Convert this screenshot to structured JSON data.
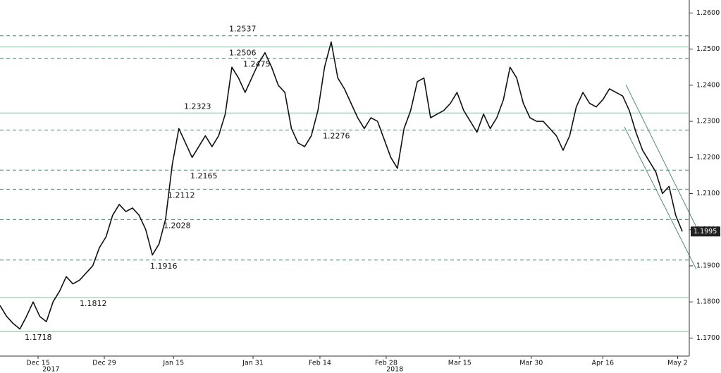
{
  "chart_data": {
    "type": "line",
    "x": [
      0,
      1,
      2,
      3,
      4,
      5,
      6,
      7,
      8,
      9,
      10,
      11,
      12,
      13,
      14,
      15,
      16,
      17,
      18,
      19,
      20,
      21,
      22,
      23,
      24,
      25,
      26,
      27,
      28,
      29,
      30,
      31,
      32,
      33,
      34,
      35,
      36,
      37,
      38,
      39,
      40,
      41,
      42,
      43,
      44,
      45,
      46,
      47,
      48,
      49,
      50,
      51,
      52,
      53,
      54,
      55,
      56,
      57,
      58,
      59,
      60,
      61,
      62,
      63,
      64,
      65,
      66,
      67,
      68,
      69,
      70,
      71,
      72,
      73,
      74,
      75,
      76,
      77,
      78,
      79,
      80,
      81,
      82,
      83,
      84,
      85,
      86,
      87,
      88,
      89,
      90,
      91,
      92,
      93,
      94,
      95,
      96,
      97,
      98,
      99,
      100,
      101,
      102,
      103
    ],
    "series": [
      {
        "color": "#111111",
        "values": [
          1.179,
          1.176,
          1.174,
          1.1725,
          1.176,
          1.18,
          1.176,
          1.1745,
          1.18,
          1.183,
          1.187,
          1.185,
          1.186,
          1.188,
          1.19,
          1.195,
          1.198,
          1.204,
          1.207,
          1.205,
          1.206,
          1.204,
          1.2,
          1.193,
          1.196,
          1.203,
          1.218,
          1.228,
          1.224,
          1.22,
          1.223,
          1.226,
          1.223,
          1.226,
          1.232,
          1.245,
          1.242,
          1.238,
          1.242,
          1.246,
          1.249,
          1.245,
          1.24,
          1.238,
          1.228,
          1.224,
          1.223,
          1.226,
          1.233,
          1.245,
          1.252,
          1.242,
          1.239,
          1.235,
          1.231,
          1.228,
          1.231,
          1.23,
          1.225,
          1.22,
          1.217,
          1.228,
          1.233,
          1.241,
          1.242,
          1.231,
          1.232,
          1.233,
          1.235,
          1.238,
          1.233,
          1.23,
          1.227,
          1.232,
          1.228,
          1.231,
          1.236,
          1.245,
          1.242,
          1.235,
          1.231,
          1.23,
          1.23,
          1.228,
          1.226,
          1.222,
          1.226,
          1.234,
          1.238,
          1.235,
          1.234,
          1.236,
          1.239,
          1.238,
          1.237,
          1.233,
          1.227,
          1.222,
          1.219,
          1.216,
          1.21,
          1.212,
          1.204,
          1.1995
        ]
      }
    ],
    "xlim": [
      0,
      104.8
    ],
    "xticks": [
      {
        "value": 5.75,
        "label": "Dec 15"
      },
      {
        "value": 15.75,
        "label": "Dec 29"
      },
      {
        "value": 26.2,
        "label": "Jan 15"
      },
      {
        "value": 38.2,
        "label": "Jan 31"
      },
      {
        "value": 48.3,
        "label": "Feb 14"
      },
      {
        "value": 58.3,
        "label": "Feb 28"
      },
      {
        "value": 69.4,
        "label": "Mar 15"
      },
      {
        "value": 80.2,
        "label": "Mar 30"
      },
      {
        "value": 91,
        "label": "Apr 16"
      },
      {
        "value": 102.3,
        "label": "May 2"
      }
    ],
    "year_ticks": [
      {
        "value": 7.7,
        "label": "2017"
      },
      {
        "value": 59.6,
        "label": "2018"
      }
    ],
    "ylim": [
      1.165,
      1.2636
    ],
    "yticks": [
      {
        "value": 1.17,
        "label": "1.1700"
      },
      {
        "value": 1.18,
        "label": "1.1800"
      },
      {
        "value": 1.19,
        "label": "1.1900"
      },
      {
        "value": 1.2,
        "label": "1.2000"
      },
      {
        "value": 1.21,
        "label": "1.2100"
      },
      {
        "value": 1.22,
        "label": "1.2200"
      },
      {
        "value": 1.23,
        "label": "1.2300"
      },
      {
        "value": 1.24,
        "label": "1.2400"
      },
      {
        "value": 1.25,
        "label": "1.2500"
      },
      {
        "value": 1.26,
        "label": "1.2600"
      }
    ],
    "levels": [
      {
        "value": 1.2537,
        "style": "dashed"
      },
      {
        "value": 1.2506,
        "style": "solid"
      },
      {
        "value": 1.2475,
        "style": "dashed"
      },
      {
        "value": 1.2323,
        "style": "solid"
      },
      {
        "value": 1.2276,
        "style": "dashed"
      },
      {
        "value": 1.2165,
        "style": "dashed"
      },
      {
        "value": 1.2112,
        "style": "dashed"
      },
      {
        "value": 1.2028,
        "style": "dashed"
      },
      {
        "value": 1.1916,
        "style": "dashed"
      },
      {
        "value": 1.1812,
        "style": "solid"
      },
      {
        "value": 1.1718,
        "style": "solid"
      }
    ]
  }
}
